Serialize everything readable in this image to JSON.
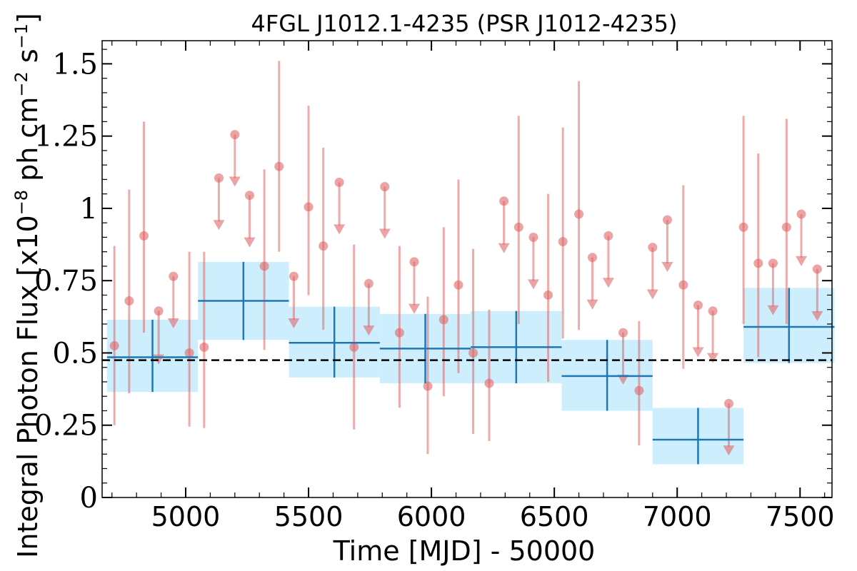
{
  "chart_data": {
    "type": "scatter",
    "title": "4FGL J1012.1-4235 (PSR J1012-4235)",
    "xlabel": "Time [MJD] - 50000",
    "ylabel": "Integral Photon Flux [x10",
    "ylabel_exp": "−8",
    "ylabel_unit": " ph cm",
    "ylabel_exp2": "−2",
    "ylabel_s": " s",
    "ylabel_exp3": "−1",
    "ylabel_close": "]",
    "xlim": [
      4660,
      7630
    ],
    "ylim": [
      0,
      1.58
    ],
    "xticks": [
      5000,
      5500,
      6000,
      6500,
      7000,
      7500
    ],
    "yticks": [
      {
        "value": 0,
        "label": "0"
      },
      {
        "value": 0.25,
        "label": "0.25"
      },
      {
        "value": 0.5,
        "label": "0.5"
      },
      {
        "value": 0.75,
        "label": "0.75"
      },
      {
        "value": 1,
        "label": "1"
      },
      {
        "value": 1.25,
        "label": "1.25"
      },
      {
        "value": 1.5,
        "label": "1.5"
      }
    ],
    "reference_line": 0.475,
    "colors": {
      "points": "#e06666",
      "bins": "#1f77b4",
      "band": "#cdeefd",
      "ref": "#000000"
    },
    "binned": [
      {
        "x0": 4680,
        "x1": 5050,
        "y": 0.485,
        "lo": 0.365,
        "hi": 0.615
      },
      {
        "x0": 5050,
        "x1": 5420,
        "y": 0.68,
        "lo": 0.545,
        "hi": 0.815
      },
      {
        "x0": 5420,
        "x1": 5790,
        "y": 0.535,
        "lo": 0.415,
        "hi": 0.66
      },
      {
        "x0": 5790,
        "x1": 6160,
        "y": 0.515,
        "lo": 0.395,
        "hi": 0.635
      },
      {
        "x0": 6160,
        "x1": 6530,
        "y": 0.52,
        "lo": 0.395,
        "hi": 0.645
      },
      {
        "x0": 6530,
        "x1": 6900,
        "y": 0.42,
        "lo": 0.3,
        "hi": 0.545
      },
      {
        "x0": 6900,
        "x1": 7270,
        "y": 0.2,
        "lo": 0.115,
        "hi": 0.31
      },
      {
        "x0": 7270,
        "x1": 7640,
        "y": 0.59,
        "lo": 0.465,
        "hi": 0.725
      }
    ],
    "detections": [
      {
        "x": 4710,
        "y": 0.525,
        "lo": 0.25,
        "hi": 0.87
      },
      {
        "x": 4770,
        "y": 0.68,
        "lo": 0.36,
        "hi": 1.065
      },
      {
        "x": 4830,
        "y": 0.905,
        "lo": 0.57,
        "hi": 1.3
      },
      {
        "x": 5015,
        "y": 0.5,
        "lo": 0.245,
        "hi": 0.85
      },
      {
        "x": 5075,
        "y": 0.52,
        "lo": 0.24,
        "hi": 0.85
      },
      {
        "x": 5320,
        "y": 0.8,
        "lo": 0.51,
        "hi": 1.135
      },
      {
        "x": 5380,
        "y": 1.145,
        "lo": 0.85,
        "hi": 1.51
      },
      {
        "x": 5500,
        "y": 1.005,
        "lo": 0.7,
        "hi": 1.355
      },
      {
        "x": 5560,
        "y": 0.87,
        "lo": 0.58,
        "hi": 1.21
      },
      {
        "x": 5685,
        "y": 0.52,
        "lo": 0.235,
        "hi": 0.875
      },
      {
        "x": 5870,
        "y": 0.57,
        "lo": 0.31,
        "hi": 0.87
      },
      {
        "x": 5985,
        "y": 0.385,
        "lo": 0.15,
        "hi": 0.695
      },
      {
        "x": 6050,
        "y": 0.615,
        "lo": 0.35,
        "hi": 0.935
      },
      {
        "x": 6110,
        "y": 0.735,
        "lo": 0.43,
        "hi": 1.1
      },
      {
        "x": 6170,
        "y": 0.5,
        "lo": 0.22,
        "hi": 0.86
      },
      {
        "x": 6235,
        "y": 0.395,
        "lo": 0.195,
        "hi": 0.65
      },
      {
        "x": 6355,
        "y": 0.935,
        "lo": 0.6,
        "hi": 1.32
      },
      {
        "x": 6475,
        "y": 0.7,
        "lo": 0.4,
        "hi": 1.05
      },
      {
        "x": 6535,
        "y": 0.885,
        "lo": 0.55,
        "hi": 1.28
      },
      {
        "x": 6600,
        "y": 0.98,
        "lo": 0.58,
        "hi": 1.44
      },
      {
        "x": 6845,
        "y": 0.37,
        "lo": 0.18,
        "hi": 0.61
      },
      {
        "x": 7025,
        "y": 0.735,
        "lo": 0.445,
        "hi": 1.08
      },
      {
        "x": 7270,
        "y": 0.935,
        "lo": 0.6,
        "hi": 1.32
      },
      {
        "x": 7330,
        "y": 0.81,
        "lo": 0.485,
        "hi": 1.19
      },
      {
        "x": 7445,
        "y": 0.935,
        "lo": 0.6,
        "hi": 1.31
      }
    ],
    "upper_limits": [
      {
        "x": 4890,
        "y": 0.645,
        "tip": 0.465
      },
      {
        "x": 4950,
        "y": 0.765,
        "tip": 0.59
      },
      {
        "x": 5135,
        "y": 1.105,
        "tip": 0.93
      },
      {
        "x": 5200,
        "y": 1.255,
        "tip": 1.08
      },
      {
        "x": 5260,
        "y": 1.045,
        "tip": 0.87
      },
      {
        "x": 5440,
        "y": 0.765,
        "tip": 0.59
      },
      {
        "x": 5625,
        "y": 1.09,
        "tip": 0.915
      },
      {
        "x": 5745,
        "y": 0.74,
        "tip": 0.565
      },
      {
        "x": 5810,
        "y": 1.075,
        "tip": 0.9
      },
      {
        "x": 5930,
        "y": 0.815,
        "tip": 0.64
      },
      {
        "x": 6295,
        "y": 1.025,
        "tip": 0.85
      },
      {
        "x": 6415,
        "y": 0.9,
        "tip": 0.725
      },
      {
        "x": 6655,
        "y": 0.83,
        "tip": 0.655
      },
      {
        "x": 6720,
        "y": 0.905,
        "tip": 0.73
      },
      {
        "x": 6780,
        "y": 0.57,
        "tip": 0.395
      },
      {
        "x": 6900,
        "y": 0.865,
        "tip": 0.69
      },
      {
        "x": 6960,
        "y": 0.96,
        "tip": 0.785
      },
      {
        "x": 7085,
        "y": 0.665,
        "tip": 0.49
      },
      {
        "x": 7145,
        "y": 0.645,
        "tip": 0.47
      },
      {
        "x": 7210,
        "y": 0.325,
        "tip": 0.15
      },
      {
        "x": 7390,
        "y": 0.81,
        "tip": 0.635
      },
      {
        "x": 7505,
        "y": 0.98,
        "tip": 0.805
      },
      {
        "x": 7570,
        "y": 0.79,
        "tip": 0.615
      }
    ]
  }
}
